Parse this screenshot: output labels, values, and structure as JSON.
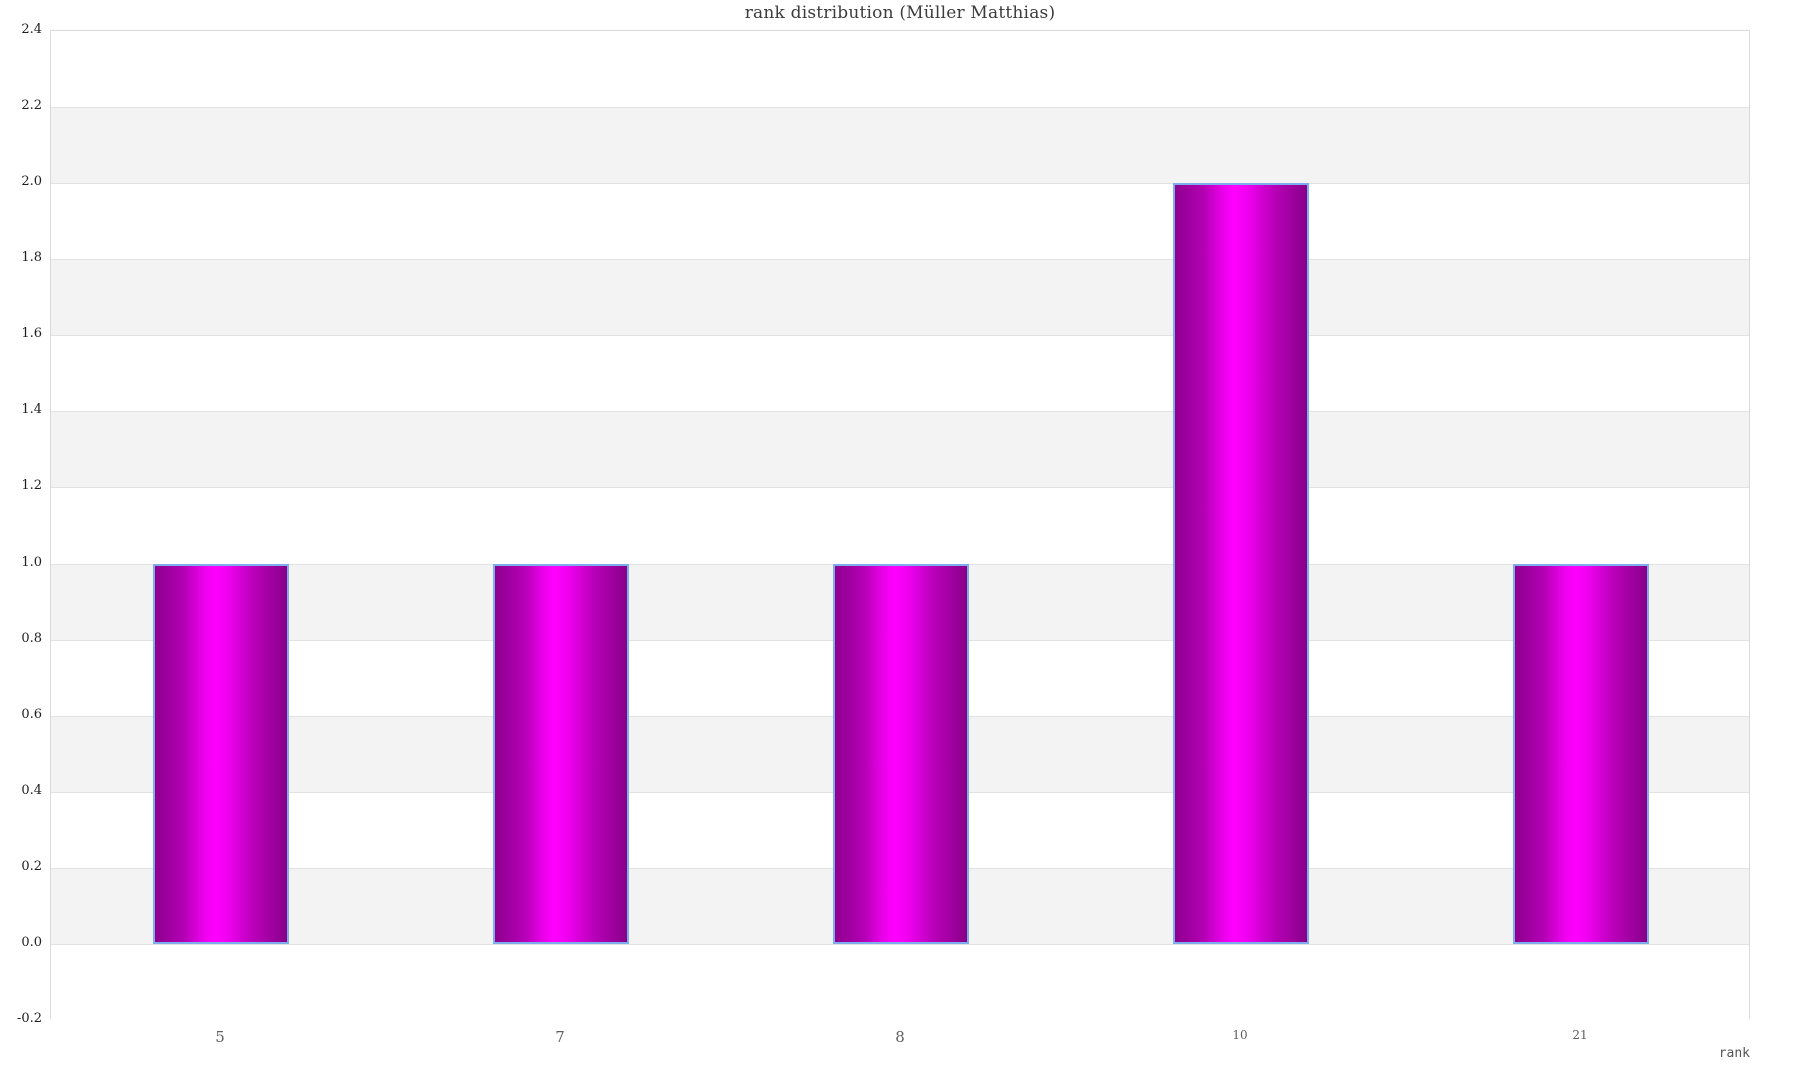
{
  "chart_data": {
    "type": "bar",
    "title": "rank distribution (Müller Matthias)",
    "xlabel": "rank",
    "ylabel": "",
    "categories": [
      "5",
      "7",
      "8",
      "10",
      "21"
    ],
    "values": [
      1,
      1,
      1,
      2,
      1
    ],
    "series": [
      {
        "name": "rank distribution",
        "values": [
          1,
          1,
          1,
          2,
          1
        ]
      }
    ],
    "x_major_labels": [
      "5",
      "7",
      "8"
    ],
    "ylim": [
      -0.2,
      2.4
    ],
    "y_tick_step": 0.2,
    "y_ticks": [
      -0.2,
      0.0,
      0.2,
      0.4,
      0.6,
      0.8,
      1.0,
      1.2,
      1.4,
      1.6,
      1.8,
      2.0,
      2.2,
      2.4
    ],
    "grid": "horizontal gridlines with alternating background bands",
    "legend": "none",
    "colors": {
      "bar_gradient_edge": "#8e008f",
      "bar_gradient_mid": "#ff00ff",
      "bar_gradient_right": "#880089",
      "bar_border": "#7dadec",
      "band_gray": "#f3f3f4",
      "band_white": "#ffffff",
      "gridline": "#e2e2e2",
      "plot_border": "#d9d9d9",
      "title_color": "#3c3c3c",
      "y_label_color": "#1f1f1f",
      "x_label_color": "#5f5f5f"
    }
  }
}
